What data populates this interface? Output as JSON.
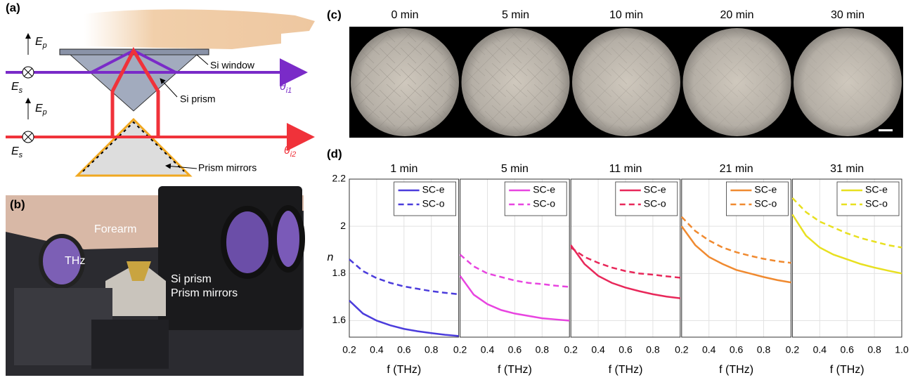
{
  "panel_a": {
    "label": "(a)",
    "window": "Si window",
    "prism": "Si prism",
    "mirrors": "Prism mirrors",
    "pol_top": {
      "ep": [
        "E",
        "p"
      ],
      "es": [
        "E",
        "s"
      ]
    },
    "pol_bottom": {
      "ep": [
        "E",
        "p"
      ],
      "es": [
        "E",
        "s"
      ]
    },
    "theta_1": [
      "θ",
      "i1"
    ],
    "theta_2": [
      "θ",
      "i2"
    ]
  },
  "panel_b": {
    "label": "(b)",
    "forearm": "Forearm",
    "thz": "THz",
    "prism": "Si prism",
    "mirrors": "Prism mirrors"
  },
  "panel_c": {
    "label": "(c)",
    "times": [
      "0 min",
      "5 min",
      "10 min",
      "20 min",
      "30 min"
    ]
  },
  "panel_d": {
    "label": "(d)"
  },
  "chart_data": [
    {
      "type": "line",
      "title": "1 min",
      "xlabel": "f (THz)",
      "ylabel": "n",
      "x": [
        0.2,
        0.3,
        0.4,
        0.5,
        0.6,
        0.7,
        0.8,
        0.9,
        1.0
      ],
      "xlim": [
        0.2,
        1.0
      ],
      "ylim": [
        1.53,
        2.2
      ],
      "xticks": [
        0.2,
        0.4,
        0.6,
        0.8
      ],
      "yticks": [
        1.6,
        1.8,
        2,
        2.2
      ],
      "grid": true,
      "legend": "upper right",
      "series": [
        {
          "name": "SC-e",
          "color": "#4b3cdc",
          "line_style": "solid",
          "values": [
            1.685,
            1.63,
            1.6,
            1.58,
            1.565,
            1.555,
            1.547,
            1.54,
            1.535
          ]
        },
        {
          "name": "SC-o",
          "color": "#4b3cdc",
          "line_style": "dashed",
          "values": [
            1.86,
            1.81,
            1.78,
            1.76,
            1.745,
            1.735,
            1.725,
            1.718,
            1.712
          ]
        }
      ]
    },
    {
      "type": "line",
      "title": "5 min",
      "xlabel": "f (THz)",
      "x": [
        0.2,
        0.3,
        0.4,
        0.5,
        0.6,
        0.7,
        0.8,
        0.9,
        1.0
      ],
      "xlim": [
        0.2,
        1.0
      ],
      "ylim": [
        1.53,
        2.2
      ],
      "xticks": [
        0.2,
        0.4,
        0.6,
        0.8
      ],
      "yticks": [
        1.6,
        1.8,
        2,
        2.2
      ],
      "grid": true,
      "legend": "upper right",
      "series": [
        {
          "name": "SC-e",
          "color": "#e844e0",
          "line_style": "solid",
          "values": [
            1.79,
            1.71,
            1.67,
            1.645,
            1.63,
            1.62,
            1.61,
            1.605,
            1.6
          ]
        },
        {
          "name": "SC-o",
          "color": "#e844e0",
          "line_style": "dashed",
          "values": [
            1.88,
            1.83,
            1.8,
            1.785,
            1.77,
            1.76,
            1.755,
            1.748,
            1.743
          ]
        }
      ]
    },
    {
      "type": "line",
      "title": "11 min",
      "xlabel": "f (THz)",
      "x": [
        0.2,
        0.3,
        0.4,
        0.5,
        0.6,
        0.7,
        0.8,
        0.9,
        1.0
      ],
      "xlim": [
        0.2,
        1.0
      ],
      "ylim": [
        1.53,
        2.2
      ],
      "xticks": [
        0.2,
        0.4,
        0.6,
        0.8
      ],
      "yticks": [
        1.6,
        1.8,
        2,
        2.2
      ],
      "grid": true,
      "legend": "upper right",
      "series": [
        {
          "name": "SC-e",
          "color": "#e8285a",
          "line_style": "solid",
          "values": [
            1.92,
            1.84,
            1.79,
            1.76,
            1.74,
            1.725,
            1.712,
            1.702,
            1.695
          ]
        },
        {
          "name": "SC-o",
          "color": "#e8285a",
          "line_style": "dashed",
          "values": [
            1.91,
            1.87,
            1.845,
            1.825,
            1.81,
            1.8,
            1.795,
            1.788,
            1.782
          ]
        }
      ]
    },
    {
      "type": "line",
      "title": "21 min",
      "xlabel": "f (THz)",
      "x": [
        0.2,
        0.3,
        0.4,
        0.5,
        0.6,
        0.7,
        0.8,
        0.9,
        1.0
      ],
      "xlim": [
        0.2,
        1.0
      ],
      "ylim": [
        1.53,
        2.2
      ],
      "xticks": [
        0.2,
        0.4,
        0.6,
        0.8
      ],
      "yticks": [
        1.6,
        1.8,
        2,
        2.2
      ],
      "grid": true,
      "legend": "upper right",
      "series": [
        {
          "name": "SC-e",
          "color": "#f08a30",
          "line_style": "solid",
          "values": [
            2.0,
            1.92,
            1.87,
            1.84,
            1.815,
            1.8,
            1.785,
            1.772,
            1.762
          ]
        },
        {
          "name": "SC-o",
          "color": "#f08a30",
          "line_style": "dashed",
          "values": [
            2.04,
            1.98,
            1.94,
            1.91,
            1.89,
            1.875,
            1.862,
            1.852,
            1.845
          ]
        }
      ]
    },
    {
      "type": "line",
      "title": "31 min",
      "xlabel": "f (THz)",
      "x": [
        0.2,
        0.3,
        0.4,
        0.5,
        0.6,
        0.7,
        0.8,
        0.9,
        1.0
      ],
      "xlim": [
        0.2,
        1.0
      ],
      "ylim": [
        1.53,
        2.2
      ],
      "xticks": [
        0.2,
        0.4,
        0.6,
        0.8,
        {
          "value": 1,
          "label": "1.0"
        }
      ],
      "yticks": [
        1.6,
        1.8,
        2,
        2.2
      ],
      "grid": true,
      "legend": "upper right",
      "series": [
        {
          "name": "SC-e",
          "color": "#e8e020",
          "line_style": "solid",
          "values": [
            2.05,
            1.96,
            1.91,
            1.88,
            1.86,
            1.84,
            1.825,
            1.812,
            1.8
          ]
        },
        {
          "name": "SC-o",
          "color": "#e8e020",
          "line_style": "dashed",
          "values": [
            2.12,
            2.06,
            2.02,
            1.995,
            1.97,
            1.95,
            1.935,
            1.92,
            1.91
          ]
        }
      ]
    }
  ]
}
